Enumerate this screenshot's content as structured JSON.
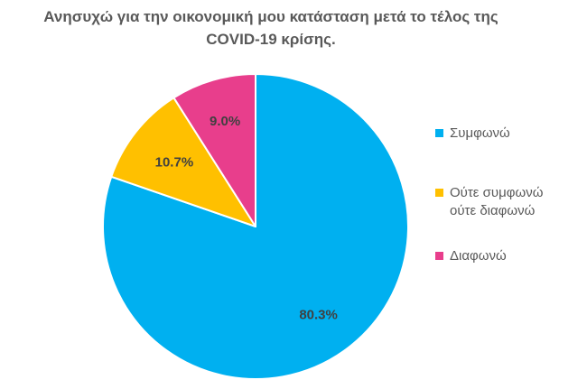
{
  "chart_data": {
    "type": "pie",
    "title_lines": [
      "Ανησυχώ για την οικονομική μου κατάσταση  μετά το τέλος της",
      "COVID-19 κρίσης."
    ],
    "series": [
      {
        "name": "Συμφωνώ",
        "name_lines": [
          "Συμφωνώ"
        ],
        "value": 80.3,
        "label": "80.3%",
        "color": "#00B0F0"
      },
      {
        "name": "Ούτε συμφωνώ ούτε διαφωνώ",
        "name_lines": [
          "Ούτε συμφωνώ",
          "ούτε διαφωνώ"
        ],
        "value": 10.7,
        "label": "10.7%",
        "color": "#FFC000"
      },
      {
        "name": "Διαφωνώ",
        "name_lines": [
          "Διαφωνώ"
        ],
        "value": 9.0,
        "label": "9.0%",
        "color": "#E83E8C"
      }
    ],
    "legend_position": "right"
  }
}
